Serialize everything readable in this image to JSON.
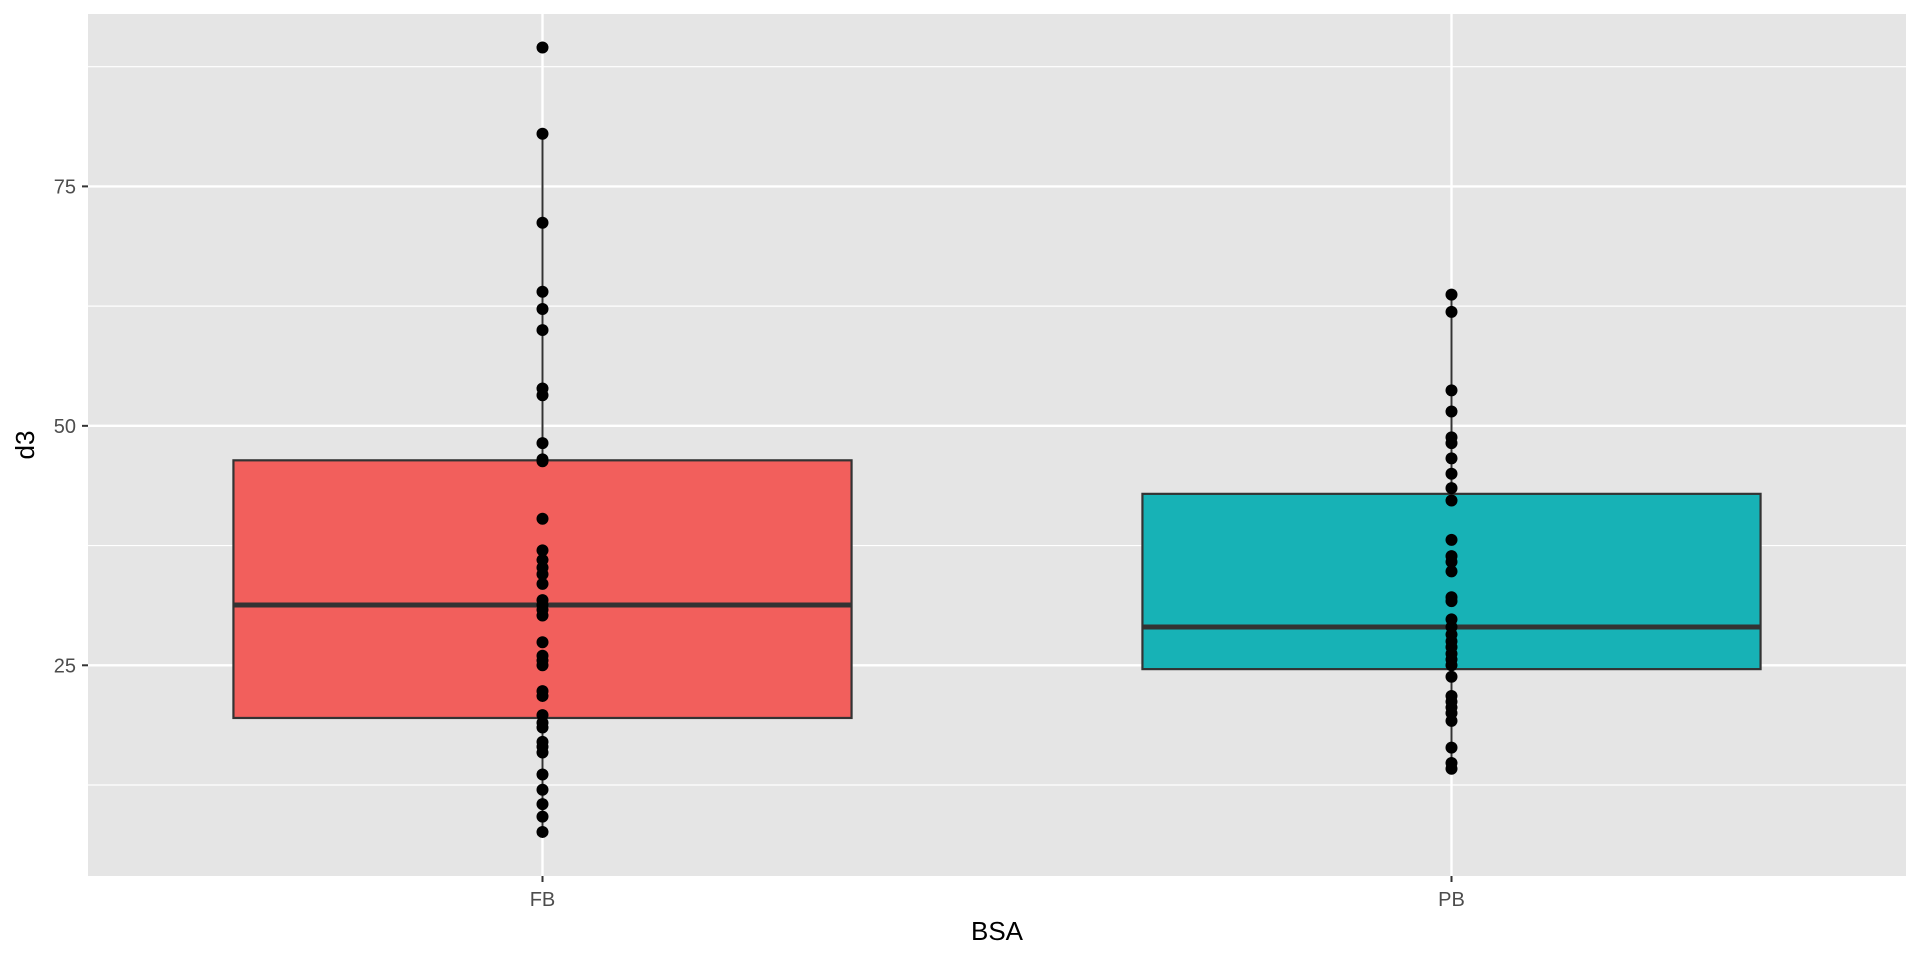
{
  "chart_data": {
    "type": "boxplot",
    "title": "",
    "xlabel": "BSA",
    "ylabel": "d3",
    "ylim": [
      3,
      93
    ],
    "yticks": [
      25,
      50,
      75
    ],
    "grid": true,
    "background": "#e5e5e5",
    "grid_color": "#ffffff",
    "categories": [
      "FB",
      "PB"
    ],
    "groups": [
      {
        "name": "FB",
        "fill": "#f25f5c",
        "q1": 19.5,
        "median": 31.3,
        "q3": 46.4,
        "whisker_low": 7.6,
        "whisker_high": 80.5,
        "points": [
          89.5,
          80.5,
          71.2,
          64.0,
          62.2,
          60.0,
          53.9,
          53.2,
          48.2,
          46.5,
          46.3,
          40.3,
          37.0,
          36.0,
          35.2,
          34.5,
          33.5,
          31.8,
          31.3,
          30.8,
          30.2,
          27.4,
          26.0,
          25.5,
          25.0,
          22.3,
          21.8,
          19.8,
          19.0,
          18.5,
          17.0,
          16.5,
          15.9,
          13.6,
          12.0,
          10.5,
          9.2,
          7.6
        ]
      },
      {
        "name": "PB",
        "fill": "#17b2b6",
        "q1": 24.6,
        "median": 29.0,
        "q3": 42.9,
        "whisker_low": 14.2,
        "whisker_high": 63.7,
        "points": [
          63.7,
          61.9,
          53.7,
          51.5,
          48.8,
          48.2,
          46.6,
          45.0,
          43.5,
          42.2,
          38.1,
          36.4,
          35.8,
          34.8,
          32.1,
          31.7,
          29.8,
          29.0,
          28.2,
          27.5,
          26.9,
          26.2,
          25.6,
          25.0,
          23.8,
          21.8,
          21.2,
          20.6,
          20.0,
          19.2,
          16.4,
          14.8,
          14.2
        ]
      }
    ]
  }
}
